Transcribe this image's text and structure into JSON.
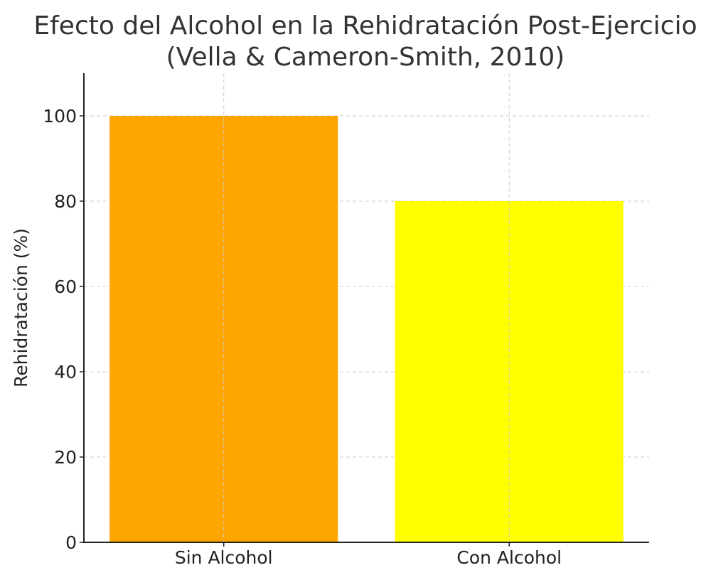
{
  "chart_data": {
    "type": "bar",
    "title": "Efecto del Alcohol en la Rehidratación Post-Ejercicio",
    "subtitle": "(Vella & Cameron-Smith, 2010)",
    "xlabel": "",
    "ylabel": "Rehidratación (%)",
    "categories": [
      "Sin Alcohol",
      "Con Alcohol"
    ],
    "values": [
      100,
      80
    ],
    "colors": [
      "#ffa500",
      "#ffff00"
    ],
    "ylim": [
      0,
      110
    ],
    "yticks": [
      0,
      20,
      40,
      60,
      80,
      100
    ],
    "grid": true,
    "legend": false
  }
}
